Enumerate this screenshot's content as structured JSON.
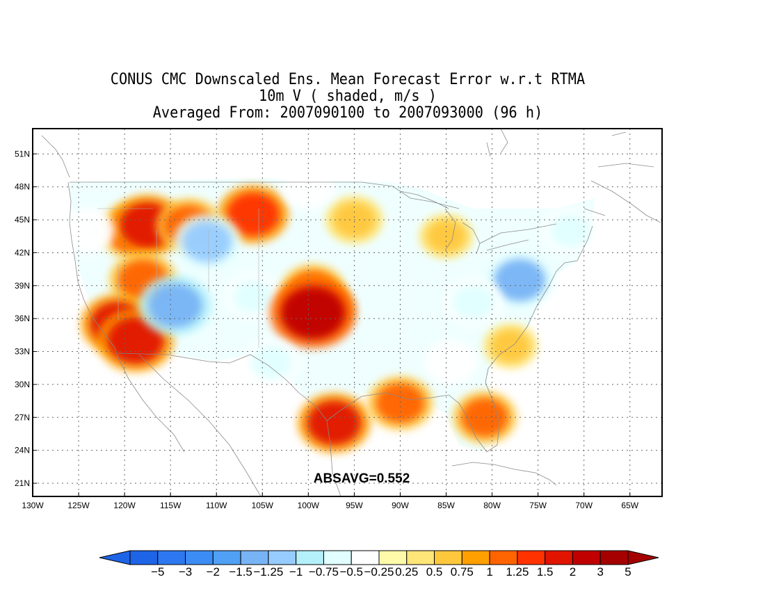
{
  "titles": {
    "line1": "CONUS CMC Downscaled Ens. Mean Forecast Error w.r.t RTMA",
    "line2": "10m V ( shaded, m/s )",
    "line3": "Averaged From: 2007090100 to 2007093000 (96 h)"
  },
  "annotation": "ABSAVG=0.552",
  "map": {
    "lon_range": [
      -130,
      -61.5
    ],
    "lat_range": [
      19.8,
      53.3
    ],
    "lat_ticks": [
      "21N",
      "24N",
      "27N",
      "30N",
      "33N",
      "36N",
      "39N",
      "42N",
      "45N",
      "48N",
      "51N"
    ],
    "lon_ticks": [
      "130W",
      "125W",
      "120W",
      "115W",
      "110W",
      "105W",
      "100W",
      "95W",
      "90W",
      "85W",
      "80W",
      "75W",
      "70W",
      "65W"
    ],
    "grid": "dotted"
  },
  "colorbar": {
    "labels": [
      "-5",
      "-3",
      "-2",
      "-1.5",
      "-1.25",
      "-1",
      "-0.75",
      "-0.5",
      "-0.25",
      "0.25",
      "0.5",
      "0.75",
      "1",
      "1.25",
      "1.5",
      "2",
      "3",
      "5"
    ],
    "colors": [
      "#1e64e6",
      "#2d78f0",
      "#3c8cf5",
      "#50a0f5",
      "#78b4f5",
      "#96ccff",
      "#b4f0fa",
      "#e1ffff",
      "#ffffff",
      "#fffaaa",
      "#ffe678",
      "#ffc83c",
      "#ffa000",
      "#ff6400",
      "#ff3200",
      "#e11400",
      "#c00000",
      "#a50000"
    ]
  },
  "field_features": [
    {
      "name": "pacific-northwest-orange",
      "lon": -119,
      "lat": 44,
      "value": 1.3
    },
    {
      "name": "nw-red-core",
      "lon": -117.5,
      "lat": 44.5,
      "value": 1.6
    },
    {
      "name": "idaho-orange",
      "lon": -113,
      "lat": 44.5,
      "value": 1.1
    },
    {
      "name": "montana-red",
      "lon": -106,
      "lat": 45.5,
      "value": 1.4
    },
    {
      "name": "nevada-orange",
      "lon": -118,
      "lat": 39.5,
      "value": 1.2
    },
    {
      "name": "california-red",
      "lon": -120.8,
      "lat": 35.5,
      "value": 1.5
    },
    {
      "name": "socal-red",
      "lon": -118.8,
      "lat": 34,
      "value": 1.7
    },
    {
      "name": "utah-blue",
      "lon": -114.5,
      "lat": 37.2,
      "value": -1.5
    },
    {
      "name": "idaho-blue",
      "lon": -111,
      "lat": 43,
      "value": -1.2
    },
    {
      "name": "colorado-blue",
      "lon": -106,
      "lat": 38,
      "value": -0.6
    },
    {
      "name": "plains-orange",
      "lon": -99.5,
      "lat": 38.5,
      "value": 1.1
    },
    {
      "name": "plains-red",
      "lon": -99.2,
      "lat": 37,
      "value": 1.6
    },
    {
      "name": "plains-core",
      "lon": -99.5,
      "lat": 36.5,
      "value": 2.2
    },
    {
      "name": "upper-midwest-yellow",
      "lon": -95,
      "lat": 45,
      "value": 0.7
    },
    {
      "name": "great-lakes-yellow",
      "lon": -85,
      "lat": 43.5,
      "value": 0.5
    },
    {
      "name": "east-coast-blue",
      "lon": -77,
      "lat": 39.5,
      "value": -1.3
    },
    {
      "name": "appalachian-blue",
      "lon": -82,
      "lat": 37.5,
      "value": -0.7
    },
    {
      "name": "southeast-blue",
      "lon": -84.5,
      "lat": 32,
      "value": -0.5
    },
    {
      "name": "florida-orange",
      "lon": -80.8,
      "lat": 27,
      "value": 1.0
    },
    {
      "name": "carolina-yellow",
      "lon": -78,
      "lat": 33.5,
      "value": 0.5
    },
    {
      "name": "texas-coast-red",
      "lon": -97.2,
      "lat": 26.5,
      "value": 1.5
    },
    {
      "name": "gulf-orange",
      "lon": -90,
      "lat": 28.3,
      "value": 1.1
    },
    {
      "name": "pacific-coast-blue",
      "lon": -124,
      "lat": 44,
      "value": -0.5
    },
    {
      "name": "north-dakota-blue",
      "lon": -100,
      "lat": 48,
      "value": -0.5
    },
    {
      "name": "new-england-blue",
      "lon": -71.5,
      "lat": 44,
      "value": -0.6
    },
    {
      "name": "texas-west-blue",
      "lon": -104,
      "lat": 32,
      "value": -0.6
    }
  ]
}
